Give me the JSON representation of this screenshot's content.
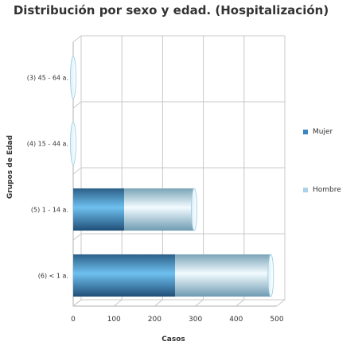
{
  "chart_data": {
    "type": "bar",
    "orientation": "horizontal",
    "stacked": true,
    "title": "Distribución por sexo y edad. (Hospitalización)",
    "xlabel": "Casos",
    "ylabel": "Grupos de Edad",
    "xlim": [
      0,
      500
    ],
    "xticks": [
      0,
      100,
      200,
      300,
      400,
      500
    ],
    "categories": [
      "(3) 45 - 64 a.",
      "(4) 15 - 44 a.",
      "(5) 1 - 14 a.",
      "(6) < 1 a."
    ],
    "series": [
      {
        "name": "Mujer",
        "values": [
          0,
          0,
          125,
          250
        ],
        "color": "#3a86c0"
      },
      {
        "name": "Hombre",
        "values": [
          0,
          0,
          172,
          235
        ],
        "color": "#a9d3ea"
      }
    ],
    "legend_position": "right",
    "grid": true
  }
}
